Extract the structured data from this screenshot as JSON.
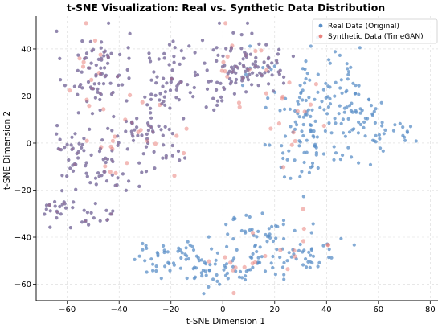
{
  "chart_data": {
    "type": "scatter",
    "title": "t-SNE Visualization: Real vs. Synthetic Data Distribution",
    "xlabel": "t-SNE Dimension 1",
    "ylabel": "t-SNE Dimension 2",
    "xlim": [
      -72,
      83
    ],
    "ylim": [
      -67,
      54
    ],
    "xticks": [
      -60,
      -40,
      -20,
      0,
      20,
      40,
      60,
      80
    ],
    "yticks": [
      -60,
      -40,
      -20,
      0,
      20,
      40
    ],
    "grid": true,
    "legend_position": "top-right",
    "series": [
      {
        "name": "Real Data (Original)",
        "color": "#5b8fc7",
        "clusters": [
          {
            "cx": -52,
            "cy": 30,
            "sx": 5,
            "sy": 9,
            "n": 45
          },
          {
            "cx": -44,
            "cy": 33,
            "sx": 4,
            "sy": 8,
            "n": 30
          },
          {
            "cx": -58,
            "cy": -3,
            "sx": 5,
            "sy": 8,
            "n": 35
          },
          {
            "cx": -45,
            "cy": -8,
            "sx": 5,
            "sy": 7,
            "n": 30
          },
          {
            "cx": -62,
            "cy": -28,
            "sx": 4,
            "sy": 3,
            "n": 22
          },
          {
            "cx": -50,
            "cy": -31,
            "sx": 5,
            "sy": 2,
            "n": 16
          },
          {
            "cx": -27,
            "cy": 5,
            "sx": 7,
            "sy": 11,
            "n": 70
          },
          {
            "cx": -17,
            "cy": 30,
            "sx": 8,
            "sy": 7,
            "n": 45
          },
          {
            "cx": 3,
            "cy": 30,
            "sx": 9,
            "sy": 9,
            "n": 70
          },
          {
            "cx": 16,
            "cy": 35,
            "sx": 6,
            "sy": 6,
            "n": 40
          },
          {
            "cx": 32,
            "cy": 15,
            "sx": 9,
            "sy": 9,
            "n": 60
          },
          {
            "cx": 45,
            "cy": 25,
            "sx": 6,
            "sy": 9,
            "n": 40
          },
          {
            "cx": 54,
            "cy": 8,
            "sx": 7,
            "sy": 8,
            "n": 55
          },
          {
            "cx": 33,
            "cy": -3,
            "sx": 9,
            "sy": 6,
            "n": 45
          },
          {
            "cx": -18,
            "cy": -50,
            "sx": 9,
            "sy": 4,
            "n": 60
          },
          {
            "cx": 5,
            "cy": -52,
            "sx": 8,
            "sy": 5,
            "n": 45
          },
          {
            "cx": 28,
            "cy": -45,
            "sx": 8,
            "sy": 6,
            "n": 60
          },
          {
            "cx": 10,
            "cy": -36,
            "sx": 6,
            "sy": 3,
            "n": 20
          },
          {
            "cx": 70,
            "cy": 6,
            "sx": 3,
            "sy": 3,
            "n": 8
          }
        ]
      },
      {
        "name": "Synthetic Data (TimeGAN)",
        "color": "#e9837e",
        "clusters": [
          {
            "cx": -52,
            "cy": 30,
            "sx": 5,
            "sy": 9,
            "n": 12
          },
          {
            "cx": -27,
            "cy": 5,
            "sx": 7,
            "sy": 11,
            "n": 14
          },
          {
            "cx": 3,
            "cy": 30,
            "sx": 9,
            "sy": 9,
            "n": 14
          },
          {
            "cx": 32,
            "cy": 15,
            "sx": 9,
            "sy": 9,
            "n": 14
          },
          {
            "cx": -45,
            "cy": -8,
            "sx": 5,
            "sy": 7,
            "n": 8
          },
          {
            "cx": 5,
            "cy": -52,
            "sx": 8,
            "sy": 5,
            "n": 10
          },
          {
            "cx": 28,
            "cy": -45,
            "sx": 8,
            "sy": 6,
            "n": 10
          }
        ]
      }
    ]
  }
}
